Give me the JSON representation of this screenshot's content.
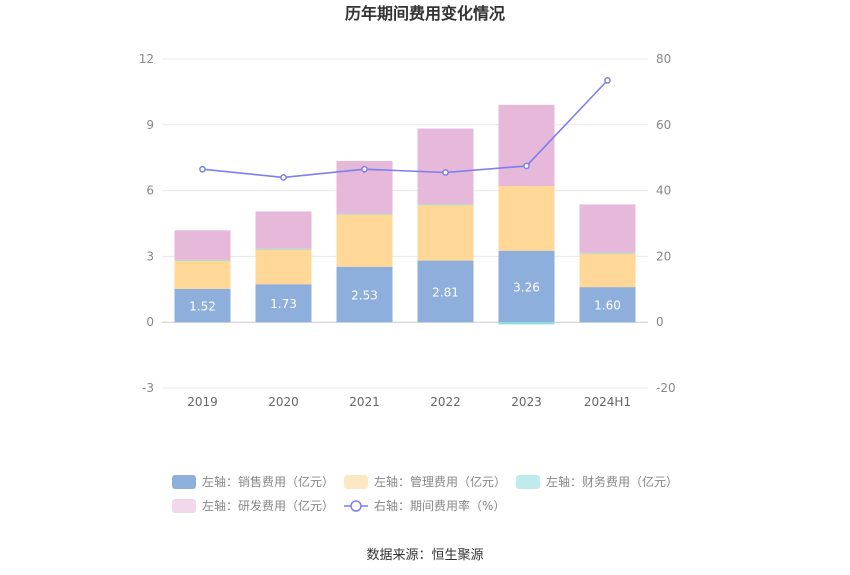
{
  "chart_data": {
    "type": "bar",
    "title": "历年期间费用变化情况",
    "categories": [
      "2019",
      "2020",
      "2021",
      "2022",
      "2023",
      "2024H1"
    ],
    "left_axis": {
      "ticks": [
        12,
        9,
        6,
        3,
        0,
        -3
      ],
      "ylim": [
        -3,
        12
      ]
    },
    "right_axis": {
      "ticks": [
        80,
        60,
        40,
        20,
        0,
        -20
      ],
      "ylim": [
        -20,
        80
      ]
    },
    "series": [
      {
        "name": "左轴：销售费用（亿元）",
        "axis": "left",
        "stack": true,
        "color": "#8eaedb",
        "values": [
          1.52,
          1.73,
          2.53,
          2.81,
          3.26,
          1.6
        ]
      },
      {
        "name": "左轴：管理费用（亿元）",
        "axis": "left",
        "stack": true,
        "color": "#ffd898",
        "values": [
          1.3,
          1.6,
          2.4,
          2.55,
          2.95,
          1.55
        ]
      },
      {
        "name": "左轴：财务费用（亿元）",
        "axis": "left",
        "stack": true,
        "color": "#8ddde0",
        "values": [
          0.02,
          0.02,
          0.02,
          0.02,
          -0.1,
          0.02
        ]
      },
      {
        "name": "左轴：研发费用（亿元）",
        "axis": "left",
        "stack": true,
        "color": "#e6b8da",
        "values": [
          1.35,
          1.7,
          2.4,
          3.45,
          3.7,
          2.2
        ]
      },
      {
        "name": "右轴：期间费用率（%）",
        "axis": "right",
        "type": "line",
        "color": "#7b7ff0",
        "values": [
          46.5,
          44.0,
          46.5,
          45.5,
          47.5,
          73.5
        ]
      }
    ],
    "data_labels": [
      "1.52",
      "1.73",
      "2.53",
      "2.81",
      "3.26",
      "1.60"
    ],
    "grid": true,
    "legend_position": "bottom"
  },
  "source_text": "数据来源：恒生聚源"
}
